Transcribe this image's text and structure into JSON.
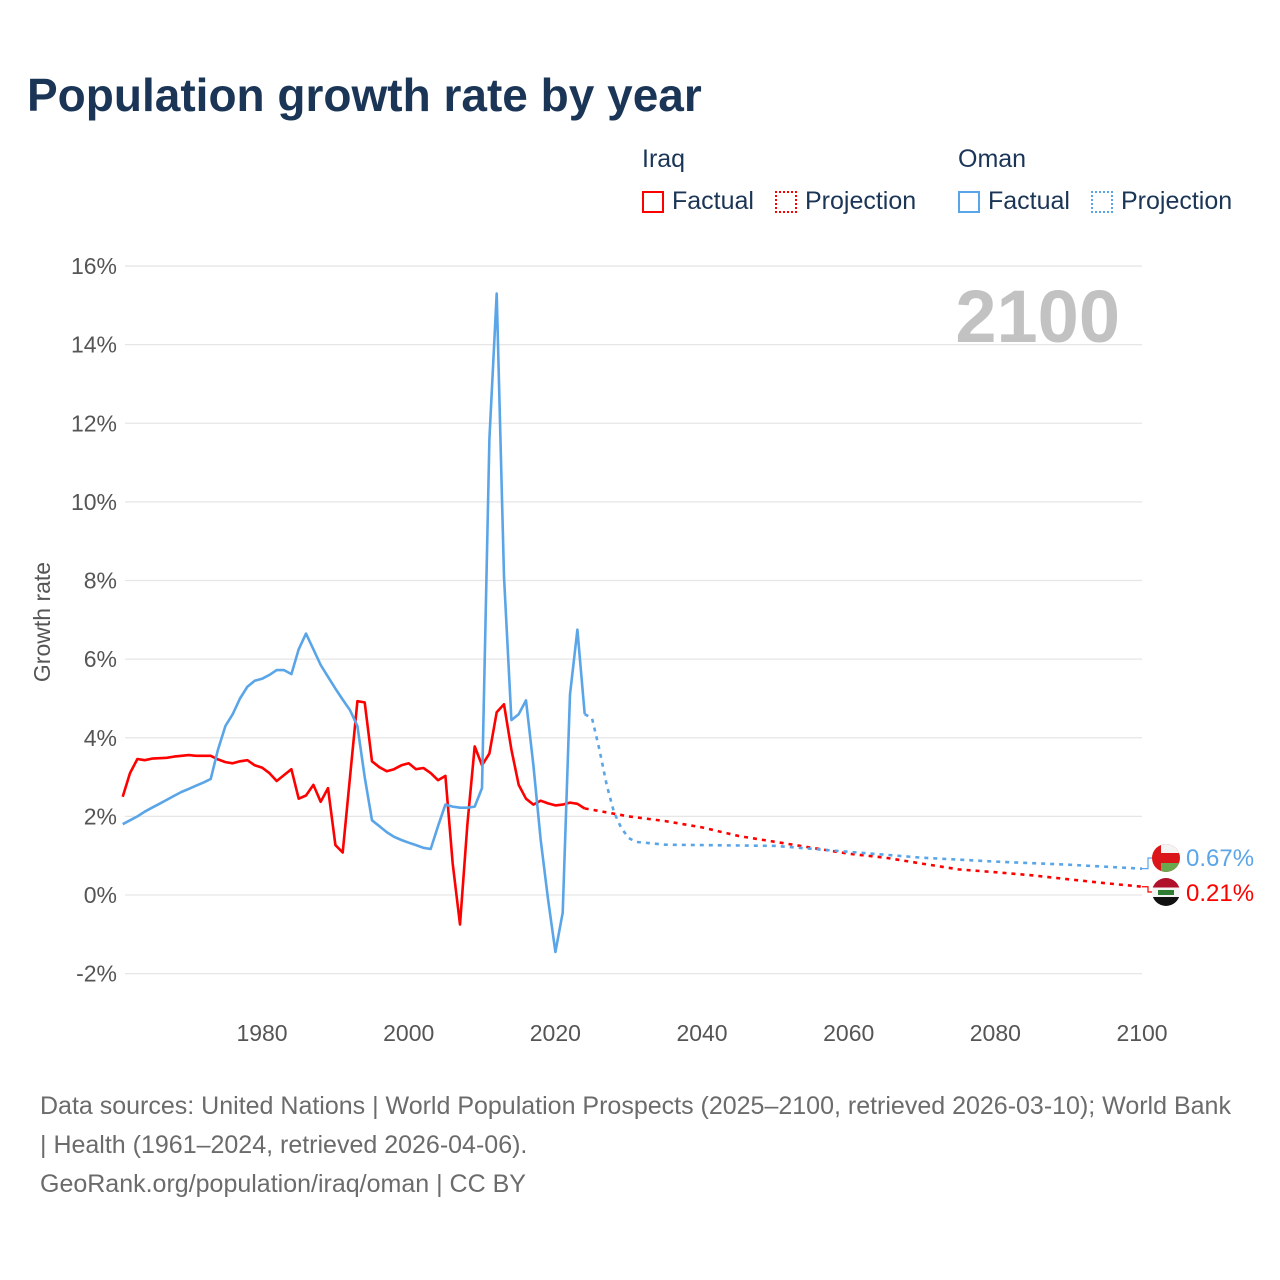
{
  "title": "Population growth rate by year",
  "legend": {
    "groups": [
      {
        "name": "Iraq",
        "color": "#ff0000",
        "factual": "Factual",
        "projection": "Projection"
      },
      {
        "name": "Oman",
        "color": "#5aa5e8",
        "factual": "Factual",
        "projection": "Projection"
      }
    ]
  },
  "footer": {
    "sources": "Data sources: United Nations | World Population Prospects (2025–2100, retrieved 2026-03-10); World Bank | Health (1961–2024, retrieved 2026-04-06).",
    "credit": "GeoRank.org/population/iraq/oman | CC BY"
  },
  "chart_data": {
    "type": "line",
    "title": "Population growth rate by year",
    "ylabel": "Growth rate",
    "xlabel": "",
    "year_label": "2100",
    "xlim": [
      1961,
      2100
    ],
    "ylim": [
      -3,
      16
    ],
    "xticks": [
      1980,
      2000,
      2020,
      2040,
      2060,
      2080,
      2100
    ],
    "yticks": [
      {
        "v": 16,
        "label": "16%"
      },
      {
        "v": 14,
        "label": "14%"
      },
      {
        "v": 12,
        "label": "12%"
      },
      {
        "v": 10,
        "label": "10%"
      },
      {
        "v": 8,
        "label": "8%"
      },
      {
        "v": 6,
        "label": "6%"
      },
      {
        "v": 4,
        "label": "4%"
      },
      {
        "v": 2,
        "label": "2%"
      },
      {
        "v": 0,
        "label": "0%"
      },
      {
        "v": -2,
        "label": "-2%"
      }
    ],
    "series": [
      {
        "name": "Iraq",
        "kind": "Factual",
        "color": "#ff0000",
        "start_year": 1961,
        "values": [
          2.5,
          3.1,
          3.46,
          3.43,
          3.47,
          3.48,
          3.49,
          3.52,
          3.54,
          3.56,
          3.54,
          3.54,
          3.54,
          3.45,
          3.38,
          3.35,
          3.4,
          3.43,
          3.3,
          3.24,
          3.1,
          2.9,
          3.05,
          3.2,
          2.45,
          2.53,
          2.8,
          2.37,
          2.72,
          1.27,
          1.08,
          3.0,
          4.93,
          4.9,
          3.4,
          3.25,
          3.15,
          3.2,
          3.3,
          3.35,
          3.2,
          3.23,
          3.1,
          2.92,
          3.03,
          0.8,
          -0.75,
          1.8,
          3.78,
          3.3,
          3.6,
          4.65,
          4.85,
          3.7,
          2.8,
          2.45,
          2.3,
          2.4,
          2.33,
          2.28,
          2.3,
          2.35,
          2.32,
          2.2
        ]
      },
      {
        "name": "Iraq",
        "kind": "Projection",
        "color": "#ff0000",
        "points": [
          [
            2024,
            2.2
          ],
          [
            2025,
            2.17
          ],
          [
            2030,
            2.0
          ],
          [
            2035,
            1.88
          ],
          [
            2040,
            1.72
          ],
          [
            2045,
            1.5
          ],
          [
            2050,
            1.35
          ],
          [
            2055,
            1.2
          ],
          [
            2060,
            1.05
          ],
          [
            2065,
            0.95
          ],
          [
            2070,
            0.8
          ],
          [
            2075,
            0.65
          ],
          [
            2080,
            0.58
          ],
          [
            2085,
            0.5
          ],
          [
            2090,
            0.4
          ],
          [
            2095,
            0.3
          ],
          [
            2100,
            0.21
          ]
        ]
      },
      {
        "name": "Oman",
        "kind": "Factual",
        "color": "#5aa5e8",
        "start_year": 1961,
        "values": [
          1.8,
          1.9,
          2.0,
          2.12,
          2.22,
          2.32,
          2.42,
          2.52,
          2.62,
          2.7,
          2.78,
          2.86,
          2.95,
          3.7,
          4.3,
          4.6,
          5.0,
          5.3,
          5.45,
          5.5,
          5.6,
          5.72,
          5.72,
          5.62,
          6.25,
          6.65,
          6.25,
          5.85,
          5.55,
          5.25,
          4.97,
          4.7,
          4.3,
          3.0,
          1.9,
          1.75,
          1.6,
          1.48,
          1.4,
          1.33,
          1.27,
          1.2,
          1.17,
          1.75,
          2.3,
          2.25,
          2.22,
          2.22,
          2.25,
          2.72,
          11.6,
          15.3,
          8.1,
          4.45,
          4.6,
          4.95,
          3.3,
          1.4,
          -0.1,
          -1.45,
          -0.45,
          5.1,
          6.75,
          4.6
        ]
      },
      {
        "name": "Oman",
        "kind": "Projection",
        "color": "#5aa5e8",
        "points": [
          [
            2024,
            4.6
          ],
          [
            2025,
            4.5
          ],
          [
            2026,
            3.7
          ],
          [
            2027,
            2.8
          ],
          [
            2028,
            2.1
          ],
          [
            2029,
            1.7
          ],
          [
            2030,
            1.45
          ],
          [
            2031,
            1.35
          ],
          [
            2035,
            1.28
          ],
          [
            2040,
            1.27
          ],
          [
            2050,
            1.25
          ],
          [
            2060,
            1.1
          ],
          [
            2070,
            0.95
          ],
          [
            2080,
            0.85
          ],
          [
            2090,
            0.77
          ],
          [
            2100,
            0.67
          ]
        ]
      }
    ],
    "end_labels": [
      {
        "name": "Oman",
        "label": "0.67%",
        "value": 0.67,
        "color": "#5aa5e8"
      },
      {
        "name": "Iraq",
        "label": "0.21%",
        "value": 0.21,
        "color": "#ff0000"
      }
    ]
  }
}
